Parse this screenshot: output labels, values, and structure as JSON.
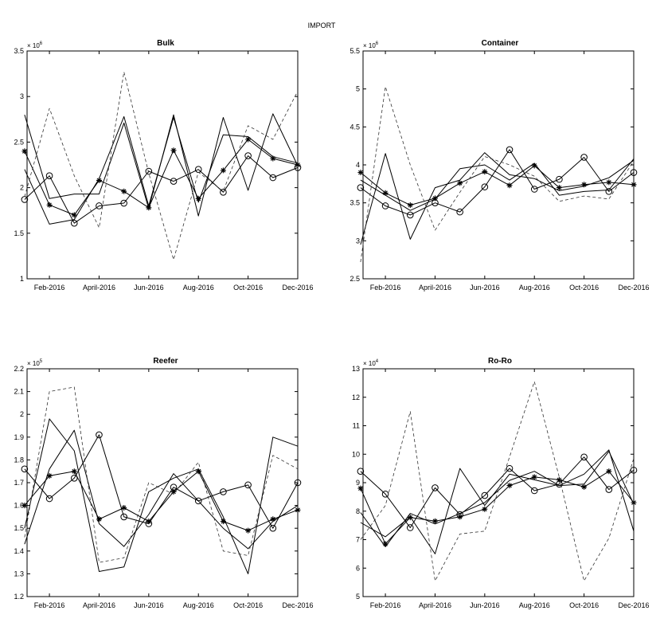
{
  "figure": {
    "title": "IMPORT"
  },
  "chart_data": [
    {
      "type": "line",
      "title": "Bulk",
      "x": [
        1,
        2,
        3,
        4,
        5,
        6,
        7,
        8,
        9,
        10,
        11,
        12
      ],
      "xticks": [
        2,
        4,
        6,
        8,
        10,
        12
      ],
      "xticklabels": [
        "Feb-2016",
        "April-2016",
        "Jun-2016",
        "Aug-2016",
        "Oct-2016",
        "Dec-2016"
      ],
      "xlim": [
        1.1,
        12
      ],
      "ylim": [
        1,
        3.5
      ],
      "yticks": [
        1,
        1.5,
        2,
        2.5,
        3,
        3.5
      ],
      "yticklabels": [
        "1",
        "1.5",
        "2",
        "2.5",
        "3",
        "3.5"
      ],
      "scale_label": "× 10",
      "scale_exponent": "6",
      "grid": false,
      "series": [
        {
          "style": "solid-circle",
          "values": [
            1.87,
            2.13,
            1.61,
            1.8,
            1.83,
            2.18,
            2.07,
            2.2,
            1.95,
            2.35,
            2.11,
            2.22
          ]
        },
        {
          "style": "solid-star",
          "values": [
            2.4,
            1.81,
            1.7,
            2.08,
            1.96,
            1.78,
            2.41,
            1.88,
            2.19,
            2.53,
            2.32,
            2.25
          ]
        },
        {
          "style": "solid",
          "values": [
            2.8,
            1.88,
            1.93,
            1.93,
            2.71,
            1.77,
            2.8,
            1.69,
            2.77,
            1.97,
            2.81,
            2.24
          ]
        },
        {
          "style": "solid",
          "values": [
            2.2,
            1.6,
            1.65,
            2.1,
            2.78,
            1.8,
            2.77,
            1.84,
            2.58,
            2.56,
            2.34,
            2.27
          ]
        },
        {
          "style": "dashed",
          "values": [
            1.9,
            2.87,
            2.13,
            1.56,
            3.27,
            2.16,
            1.21,
            2.17,
            1.96,
            2.68,
            2.53,
            3.06
          ]
        }
      ]
    },
    {
      "type": "line",
      "title": "Container",
      "x": [
        1,
        2,
        3,
        4,
        5,
        6,
        7,
        8,
        9,
        10,
        11,
        12
      ],
      "xticks": [
        2,
        4,
        6,
        8,
        10,
        12
      ],
      "xticklabels": [
        "Feb-2016",
        "April-2016",
        "Jun-2016",
        "Aug-2016",
        "Oct-2016",
        "Dec-2016"
      ],
      "xlim": [
        1.1,
        12
      ],
      "ylim": [
        2.5,
        5.5
      ],
      "yticks": [
        2.5,
        3,
        3.5,
        4,
        4.5,
        5,
        5.5
      ],
      "yticklabels": [
        "2.5",
        "3",
        "3.5",
        "4",
        "4.5",
        "5",
        "5.5"
      ],
      "scale_label": "× 10",
      "scale_exponent": "6",
      "grid": false,
      "series": [
        {
          "style": "solid-circle",
          "values": [
            3.7,
            3.46,
            3.34,
            3.5,
            3.38,
            3.71,
            4.2,
            3.68,
            3.81,
            4.1,
            3.65,
            3.9
          ]
        },
        {
          "style": "solid-star",
          "values": [
            3.9,
            3.63,
            3.47,
            3.56,
            3.76,
            3.91,
            3.73,
            3.99,
            3.7,
            3.74,
            3.77,
            3.74
          ]
        },
        {
          "style": "solid",
          "values": [
            2.95,
            4.15,
            3.02,
            3.7,
            3.8,
            4.16,
            3.87,
            3.82,
            3.66,
            3.72,
            3.83,
            4.06
          ]
        },
        {
          "style": "solid",
          "values": [
            3.8,
            3.6,
            3.4,
            3.55,
            3.95,
            4.0,
            3.8,
            4.02,
            3.6,
            3.65,
            3.67,
            4.08
          ]
        },
        {
          "style": "dashed",
          "values": [
            2.72,
            5.03,
            4.0,
            3.14,
            3.64,
            4.11,
            4.0,
            3.85,
            3.52,
            3.59,
            3.55,
            4.05
          ]
        }
      ]
    },
    {
      "type": "line",
      "title": "Reefer",
      "x": [
        1,
        2,
        3,
        4,
        5,
        6,
        7,
        8,
        9,
        10,
        11,
        12
      ],
      "xticks": [
        2,
        4,
        6,
        8,
        10,
        12
      ],
      "xticklabels": [
        "Feb-2016",
        "April-2016",
        "Jun-2016",
        "Aug-2016",
        "Oct-2016",
        "Dec-2016"
      ],
      "xlim": [
        1.1,
        12
      ],
      "ylim": [
        1.2,
        2.2
      ],
      "yticks": [
        1.2,
        1.3,
        1.4,
        1.5,
        1.6,
        1.7,
        1.8,
        1.9,
        2,
        2.1,
        2.2
      ],
      "yticklabels": [
        "1.2",
        "1.3",
        "1.4",
        "1.5",
        "1.6",
        "1.7",
        "1.8",
        "1.9",
        "2",
        "2.1",
        "2.2"
      ],
      "scale_label": "× 10",
      "scale_exponent": "5",
      "grid": false,
      "series": [
        {
          "style": "solid-circle",
          "values": [
            1.76,
            1.63,
            1.72,
            1.91,
            1.55,
            1.52,
            1.68,
            1.62,
            1.66,
            1.69,
            1.5,
            1.7
          ]
        },
        {
          "style": "solid-star",
          "values": [
            1.6,
            1.73,
            1.75,
            1.54,
            1.59,
            1.53,
            1.66,
            1.75,
            1.53,
            1.49,
            1.54,
            1.58
          ]
        },
        {
          "style": "solid",
          "values": [
            1.5,
            1.98,
            1.84,
            1.31,
            1.33,
            1.66,
            1.72,
            1.76,
            1.55,
            1.3,
            1.9,
            1.86
          ]
        },
        {
          "style": "solid",
          "values": [
            1.43,
            1.76,
            1.93,
            1.52,
            1.42,
            1.56,
            1.74,
            1.62,
            1.5,
            1.41,
            1.53,
            1.6
          ]
        },
        {
          "style": "dashed",
          "values": [
            1.46,
            2.1,
            2.12,
            1.35,
            1.37,
            1.7,
            1.65,
            1.79,
            1.4,
            1.38,
            1.82,
            1.76
          ]
        }
      ]
    },
    {
      "type": "line",
      "title": "Ro-Ro",
      "x": [
        1,
        2,
        3,
        4,
        5,
        6,
        7,
        8,
        9,
        10,
        11,
        12
      ],
      "xticks": [
        2,
        4,
        6,
        8,
        10,
        12
      ],
      "xticklabels": [
        "Feb-2016",
        "April-2016",
        "Jun-2016",
        "Aug-2016",
        "Oct-2016",
        "Dec-2016"
      ],
      "xlim": [
        1.1,
        12
      ],
      "ylim": [
        5,
        13
      ],
      "yticks": [
        5,
        6,
        7,
        8,
        9,
        10,
        11,
        12,
        13
      ],
      "yticklabels": [
        "5",
        "6",
        "7",
        "8",
        "9",
        "10",
        "11",
        "12",
        "13"
      ],
      "scale_label": "× 10",
      "scale_exponent": "4",
      "grid": false,
      "series": [
        {
          "style": "solid-circle",
          "values": [
            9.4,
            8.6,
            7.42,
            8.82,
            7.88,
            8.55,
            9.5,
            8.72,
            8.95,
            9.9,
            8.76,
            9.44
          ]
        },
        {
          "style": "solid-star",
          "values": [
            8.8,
            6.85,
            7.78,
            7.65,
            7.8,
            8.07,
            8.9,
            9.2,
            9.1,
            8.85,
            9.4,
            8.3
          ]
        },
        {
          "style": "solid",
          "values": [
            7.6,
            7.1,
            7.8,
            6.5,
            9.5,
            8.2,
            9.3,
            9.1,
            8.9,
            9.3,
            10.15,
            7.3
          ]
        },
        {
          "style": "solid",
          "values": [
            7.95,
            6.75,
            7.92,
            7.55,
            7.92,
            8.3,
            9.08,
            9.4,
            8.9,
            8.95,
            10.1,
            8.25
          ]
        },
        {
          "style": "dashed",
          "values": [
            7.0,
            8.2,
            11.5,
            5.55,
            7.2,
            7.3,
            9.9,
            12.55,
            9.2,
            5.55,
            7.05,
            9.85
          ]
        }
      ]
    }
  ]
}
